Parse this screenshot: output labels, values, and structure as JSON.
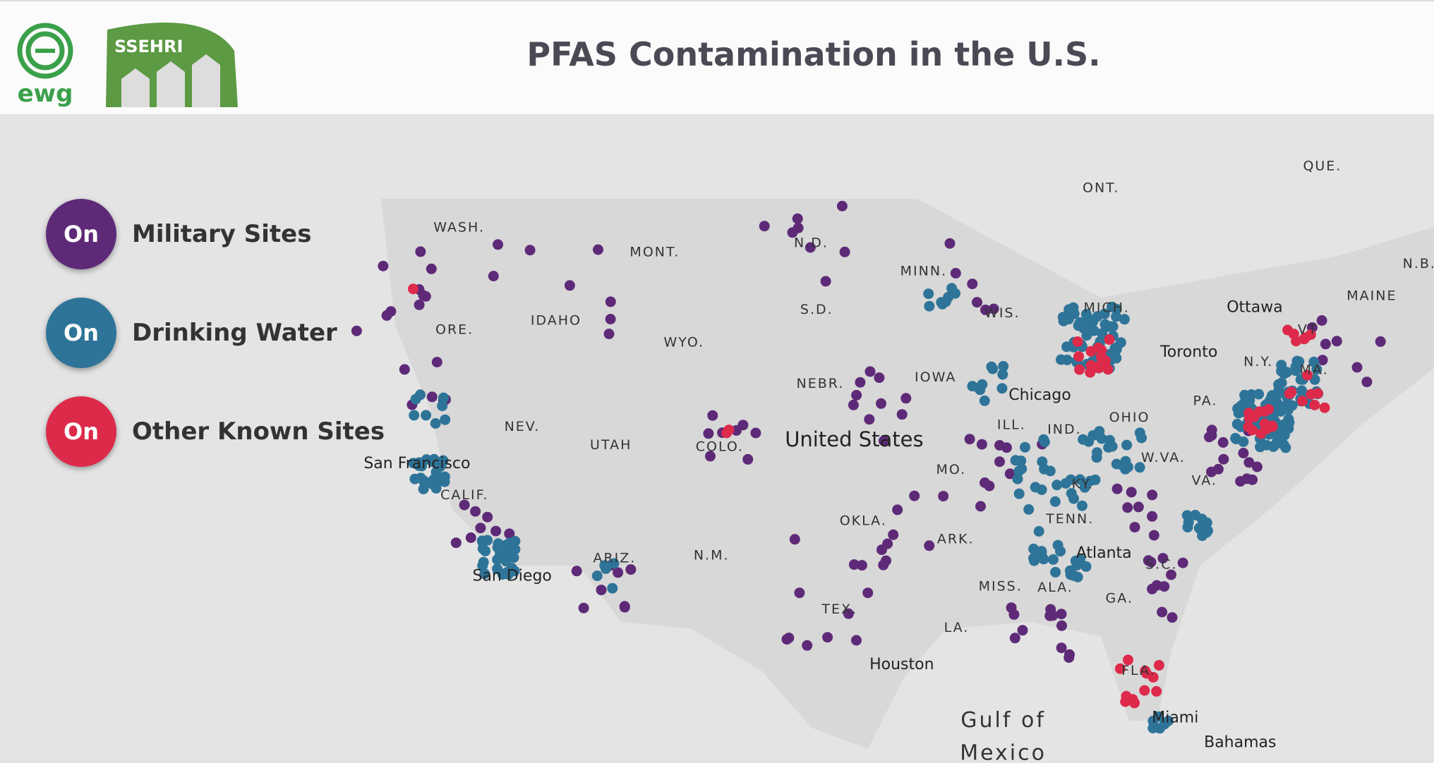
{
  "header": {
    "title": "PFAS Contamination in the U.S.",
    "logos": [
      "ewg",
      "SSEHRI"
    ]
  },
  "legend": {
    "items": [
      {
        "state": "On",
        "label": "Military Sites"
      },
      {
        "state": "On",
        "label": "Drinking Water"
      },
      {
        "state": "On",
        "label": "Other Known Sites"
      }
    ]
  },
  "map": {
    "labels": [
      "WASH.",
      "MONT.",
      "N.D.",
      "MINN.",
      "ONT.",
      "QUE.",
      "N.B.",
      "MAINE",
      "Ottawa",
      "Toronto",
      "N.Y.",
      "PA.",
      "OHIO",
      "IND.",
      "ILL.",
      "Chicago",
      "WIS.",
      "MICH.",
      "IOWA",
      "NEBR.",
      "S.D.",
      "WYO.",
      "IDAHO",
      "ORE.",
      "NEV.",
      "UTAH",
      "COLO.",
      "United States",
      "MO.",
      "San Francisco",
      "CALIF.",
      "San Diego",
      "ARIZ.",
      "N.M.",
      "OKLA.",
      "TEX.",
      "ARK.",
      "TENN.",
      "KY.",
      "W.VA.",
      "VA.",
      "MISS.",
      "ALA.",
      "GA.",
      "Atlanta",
      "S.C.",
      "LA.",
      "Houston",
      "FLA.",
      "Miami",
      "Gulf of",
      "Mexico",
      "Bahamas",
      "VT",
      "MA."
    ]
  }
}
